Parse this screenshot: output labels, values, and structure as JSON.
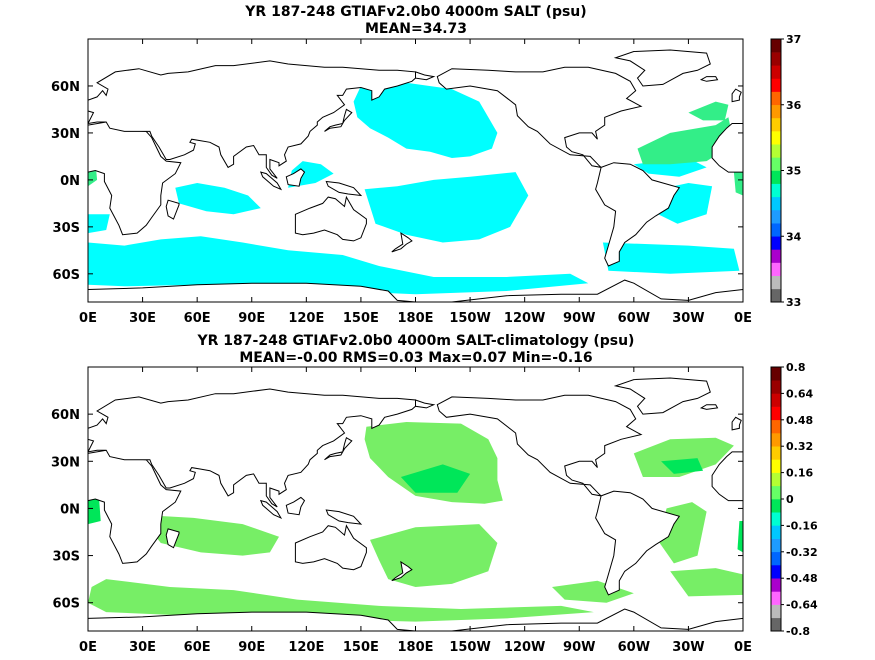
{
  "chart_data": [
    {
      "type": "heatmap",
      "title": "YR 187-248 GTIAFv2.0b0 4000m SALT (psu)",
      "subtitle": "MEAN=34.73",
      "x_tick_labels": [
        "0E",
        "30E",
        "60E",
        "90E",
        "120E",
        "150E",
        "180E",
        "150W",
        "120W",
        "90W",
        "60W",
        "30W",
        "0E"
      ],
      "y_tick_labels": [
        "60N",
        "30N",
        "0N",
        "30S",
        "60S"
      ],
      "xlim": [
        0,
        360
      ],
      "ylim": [
        -78,
        90
      ],
      "colorbar": {
        "range": [
          33,
          37
        ],
        "tick_labels": [
          "37",
          "36",
          "35",
          "34",
          "33"
        ],
        "colors": [
          "#666666",
          "#bbbbbb",
          "#ff66ff",
          "#aa00cc",
          "#0000ff",
          "#0066ff",
          "#1e9bff",
          "#00c8ff",
          "#00ffd2",
          "#00e659",
          "#66ff66",
          "#b4ff33",
          "#ffff00",
          "#ffcc00",
          "#ff9900",
          "#ff6600",
          "#ff0000",
          "#cc0000",
          "#990000",
          "#660000"
        ]
      },
      "field_color_main": "#00ffff",
      "field_color_high": "#33ee88"
    },
    {
      "type": "heatmap",
      "title": "YR 187-248 GTIAFv2.0b0 4000m SALT-climatology (psu)",
      "subtitle": "MEAN=-0.00   RMS=0.03   Max=0.07   Min=-0.16",
      "x_tick_labels": [
        "0E",
        "30E",
        "60E",
        "90E",
        "120E",
        "150E",
        "180E",
        "150W",
        "120W",
        "90W",
        "60W",
        "30W",
        "0E"
      ],
      "y_tick_labels": [
        "60N",
        "30N",
        "0N",
        "30S",
        "60S"
      ],
      "xlim": [
        0,
        360
      ],
      "ylim": [
        -78,
        90
      ],
      "colorbar": {
        "range": [
          -0.8,
          0.8
        ],
        "tick_labels": [
          "0.8",
          "0.64",
          "0.48",
          "0.32",
          "0.16",
          "0",
          "-0.16",
          "-0.32",
          "-0.48",
          "-0.64",
          "-0.8"
        ],
        "colors": [
          "#666666",
          "#bbbbbb",
          "#ff66ff",
          "#aa00cc",
          "#0000ff",
          "#0066ff",
          "#1e9bff",
          "#00c8ff",
          "#00ffd2",
          "#00e659",
          "#66ff66",
          "#b4ff33",
          "#ffff00",
          "#ffcc00",
          "#ff9900",
          "#ff6600",
          "#ff0000",
          "#cc0000",
          "#990000",
          "#660000"
        ]
      },
      "field_color_main": "#77ee66",
      "field_color_high": "#00e659"
    }
  ]
}
